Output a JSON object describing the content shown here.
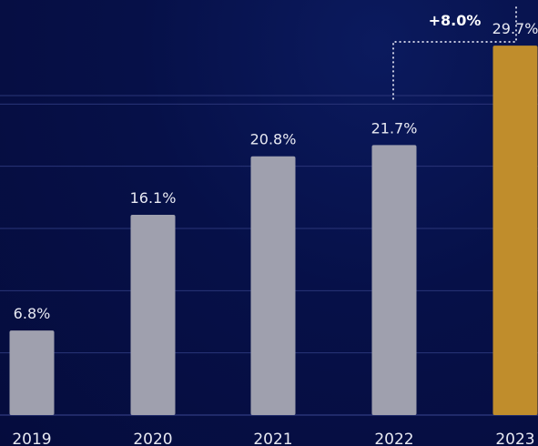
{
  "chart_data": {
    "type": "bar",
    "categories": [
      "2019",
      "2020",
      "2021",
      "2022",
      "2023"
    ],
    "values": [
      6.8,
      16.1,
      20.8,
      21.7,
      29.7
    ],
    "value_labels": [
      "6.8%",
      "16.1%",
      "20.8%",
      "21.7%",
      "29.7%"
    ],
    "ylim": [
      0,
      30
    ],
    "grid": true,
    "bar_color": "#9fa0ae",
    "highlight_color": "#c08d2c",
    "highlight_index": 4,
    "change_annotation": {
      "label": "+8.0%",
      "from": "2022",
      "to": "2023"
    }
  }
}
